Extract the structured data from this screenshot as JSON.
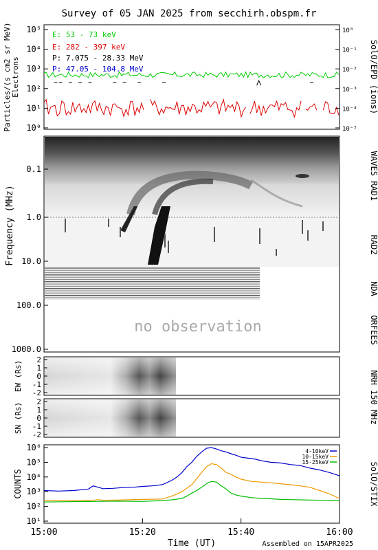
{
  "title": "Survey of 05 JAN 2025 from secchirh.obspm.fr",
  "footer": "Assembled on 15APR2025",
  "colors": {
    "green": "#00cc00",
    "red": "#dd0000",
    "black": "#000000",
    "blue": "#0000cc",
    "stix_blue": "#0000cc",
    "stix_orange": "#ee9900",
    "stix_green": "#00bb00"
  },
  "chart_data": [
    {
      "type": "line",
      "panel": "particles",
      "ylabel": "Particles/(s cm2 sr MeV)",
      "ylabel2": "Electrons",
      "right_label": "SolO/EPD (ions)",
      "yscale": "log",
      "ylim": [
        1,
        100000
      ],
      "y_ticks": [
        "10⁰",
        "10¹",
        "10²",
        "10³",
        "10⁴",
        "10⁵"
      ],
      "y2_ticks": [
        "10⁻⁵",
        "10⁻⁴",
        "10⁻³",
        "10⁻²",
        "10⁻¹",
        "10⁰"
      ],
      "series": [
        {
          "name": "E: 53 - 73 keV",
          "color": "#00cc00",
          "level": 500
        },
        {
          "name": "E: 282 - 397 keV",
          "color": "#dd0000",
          "level": 10
        },
        {
          "name": "P: 7.075 - 28.33 MeV",
          "color": "#000000",
          "level": 200
        },
        {
          "name": "P: 47.05 - 104.8 MeV",
          "color": "#0000cc",
          "level": null
        }
      ]
    },
    {
      "type": "heatmap",
      "panel": "radio_spectrum",
      "ylabel": "Frequency (MHz)",
      "yscale": "log",
      "y_ticks": [
        "0.1",
        "1.0",
        "10.0",
        "100.0",
        "1000.0"
      ],
      "instrument_labels": [
        "WAVES RAD1",
        "RAD2",
        "NDA",
        "ORFEES"
      ],
      "no_data_text": "no observation"
    },
    {
      "type": "heatmap",
      "panel": "nrh_ew",
      "ylabel": "EW (Rs)",
      "y_ticks": [
        "2",
        "1",
        "0",
        "-1",
        "-2"
      ]
    },
    {
      "type": "heatmap",
      "panel": "nrh_sn",
      "ylabel": "SN (Rs)",
      "y_ticks": [
        "2",
        "1",
        "0",
        "-1",
        "-2"
      ],
      "right_label": "NRH 150 MHz"
    },
    {
      "type": "line",
      "panel": "stix",
      "ylabel": "COUNTS",
      "right_label": "SolO/STIX",
      "yscale": "log",
      "ylim": [
        10,
        1000000
      ],
      "y_ticks": [
        "10¹",
        "10²",
        "10³",
        "10⁴",
        "10⁵",
        "10⁶"
      ],
      "xlabel": "Time (UT)",
      "x_ticks": [
        "15:00",
        "15:20",
        "15:40",
        "16:00"
      ],
      "xlim_min": [
        0,
        60
      ],
      "series": [
        {
          "name": "4-10keV",
          "color": "#0000cc",
          "x": [
            0,
            3,
            6,
            9,
            10,
            11,
            12,
            14,
            16,
            18,
            20,
            22,
            24,
            26,
            27,
            28,
            29,
            30,
            31,
            32,
            33,
            34,
            35,
            36,
            37,
            38,
            39,
            40,
            41,
            42,
            43,
            44,
            46,
            48,
            50,
            52,
            54,
            56,
            58,
            60
          ],
          "y": [
            1200,
            1100,
            1200,
            1500,
            2500,
            2000,
            1600,
            1700,
            1900,
            2000,
            2300,
            2500,
            3000,
            6000,
            10000,
            20000,
            50000,
            100000,
            250000,
            500000,
            900000,
            1000000,
            800000,
            600000,
            500000,
            380000,
            300000,
            220000,
            200000,
            180000,
            160000,
            130000,
            100000,
            90000,
            70000,
            60000,
            40000,
            30000,
            20000,
            12000
          ]
        },
        {
          "name": "10-15keV",
          "color": "#ee9900",
          "x": [
            0,
            5,
            10,
            11,
            12,
            15,
            20,
            24,
            26,
            28,
            30,
            32,
            33,
            34,
            35,
            36,
            37,
            38,
            39,
            40,
            41,
            42,
            44,
            46,
            48,
            50,
            52,
            54,
            56,
            58,
            60
          ],
          "y": [
            250,
            240,
            260,
            290,
            260,
            270,
            300,
            320,
            500,
            1000,
            3000,
            20000,
            50000,
            80000,
            70000,
            40000,
            20000,
            15000,
            10000,
            7000,
            6000,
            5000,
            4500,
            4000,
            3500,
            3000,
            2500,
            2000,
            1200,
            700,
            350
          ]
        },
        {
          "name": "15-25keV",
          "color": "#00bb00",
          "x": [
            0,
            5,
            10,
            15,
            20,
            24,
            26,
            28,
            29,
            30,
            31,
            32,
            33,
            34,
            35,
            36,
            37,
            38,
            39,
            40,
            42,
            44,
            46,
            48,
            50,
            52,
            54,
            56,
            58,
            60
          ],
          "y": [
            200,
            210,
            220,
            230,
            220,
            250,
            280,
            350,
            500,
            800,
            1200,
            2000,
            3500,
            5000,
            4500,
            2500,
            1500,
            800,
            600,
            500,
            400,
            350,
            330,
            300,
            290,
            280,
            270,
            260,
            250,
            240
          ]
        }
      ]
    }
  ]
}
